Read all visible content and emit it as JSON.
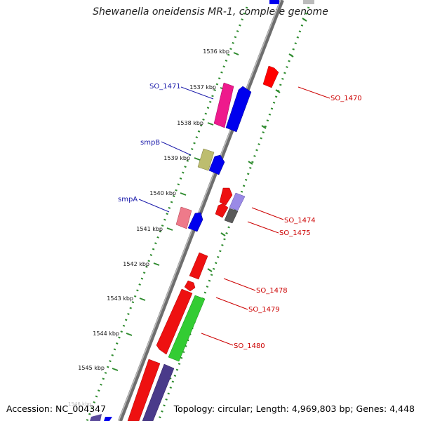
{
  "title": "Shewanella oneidensis MR-1, complete genome",
  "footer": {
    "accession": "Accession: NC_004347",
    "summary": "Topology: circular; Length: 4,969,803 bp; Genes: 4,448"
  },
  "ticks": [
    "1536 kbp",
    "1537 kbp",
    "1538 kbp",
    "1539 kbp",
    "1540 kbp",
    "1541 kbp",
    "1542 kbp",
    "1543 kbp",
    "1544 kbp",
    "1545 kbp",
    "1546 kbp"
  ],
  "labels": {
    "so1471": "SO_1471",
    "smpB": "smpB",
    "smpA": "smpA",
    "so1470": "SO_1470",
    "so1474": "SO_1474",
    "so1475": "SO_1475",
    "so1478": "SO_1478",
    "so1479": "SO_1479",
    "so1480": "SO_1480"
  },
  "colors": {
    "backbone": "#7a7a7a",
    "ruler_dots": "#2e8b2e",
    "left_label": "#1a1aaa",
    "right_label": "#cc0000"
  }
}
